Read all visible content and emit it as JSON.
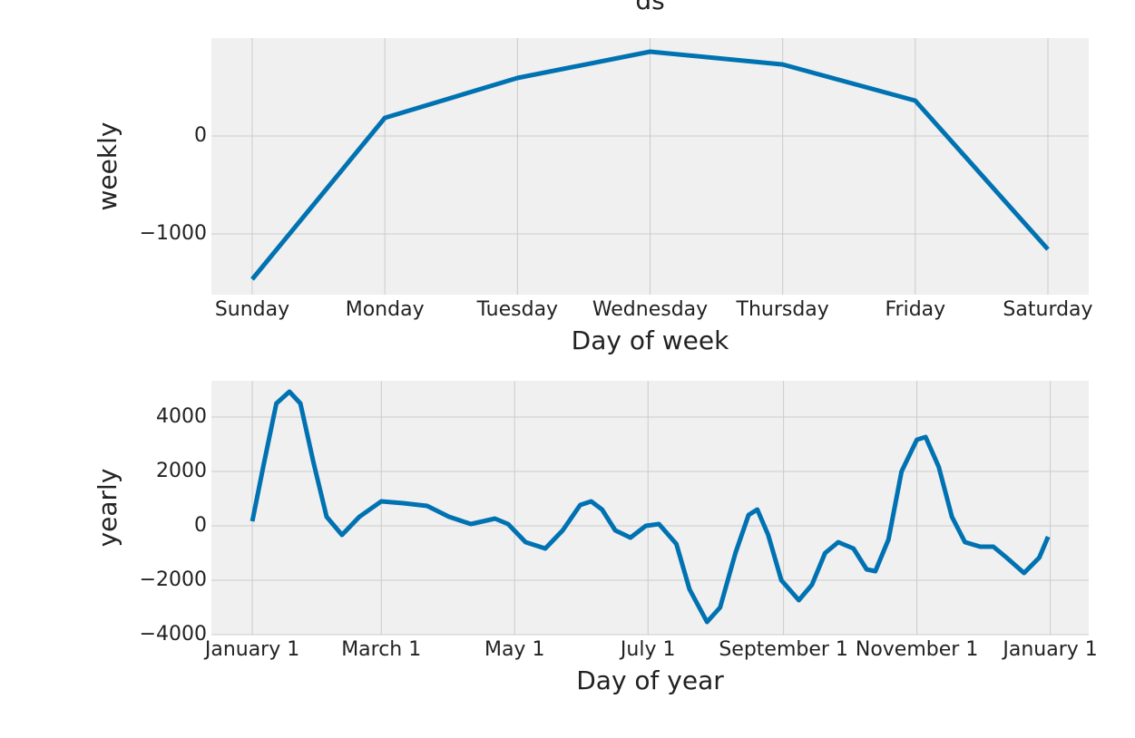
{
  "chart_data": [
    {
      "type": "line",
      "title": "ds",
      "xlabel": "Day of week",
      "ylabel": "weekly",
      "categories": [
        "Sunday",
        "Monday",
        "Tuesday",
        "Wednesday",
        "Thursday",
        "Friday",
        "Saturday"
      ],
      "values": [
        -1463,
        185,
        593,
        861,
        731,
        361,
        -1157
      ],
      "color": "#0072b2",
      "ylim": [
        -1620,
        1000
      ],
      "yticks": [
        {
          "value": -1000,
          "label": "−1000"
        },
        0
      ],
      "grid": true
    },
    {
      "type": "line",
      "xlabel": "Day of year",
      "ylabel": "yearly",
      "x": [
        0,
        5,
        11,
        17,
        22,
        28,
        34,
        41,
        49,
        59,
        69,
        80,
        90,
        100,
        111,
        117,
        125,
        134,
        142,
        150,
        155,
        160,
        166,
        173,
        180,
        186,
        194,
        200,
        208,
        214,
        221,
        227,
        231,
        236,
        242,
        250,
        256,
        262,
        268,
        275,
        281,
        285,
        291,
        297,
        304,
        308,
        314,
        320,
        326,
        333,
        339,
        345,
        353,
        360,
        364
      ],
      "values": [
        167,
        2167,
        4500,
        4933,
        4500,
        2333,
        333,
        -333,
        333,
        900,
        833,
        733,
        333,
        67,
        267,
        67,
        -600,
        -833,
        -167,
        767,
        900,
        600,
        -167,
        -433,
        0,
        67,
        -667,
        -2333,
        -3533,
        -3000,
        -1000,
        400,
        600,
        -333,
        -2000,
        -2733,
        -2167,
        -1000,
        -600,
        -833,
        -1600,
        -1667,
        -500,
        2000,
        3167,
        3267,
        2167,
        333,
        -600,
        -767,
        -767,
        -1167,
        -1733,
        -1167,
        -400
      ],
      "color": "#0072b2",
      "xlim": [
        -18.7,
        382.6
      ],
      "ylim": [
        -4000,
        5333
      ],
      "xticks": [
        {
          "value": 0,
          "label": "January 1"
        },
        {
          "value": 59,
          "label": "March 1"
        },
        {
          "value": 120,
          "label": "May 1"
        },
        {
          "value": 181,
          "label": "July 1"
        },
        {
          "value": 243,
          "label": "September 1"
        },
        {
          "value": 304,
          "label": "November 1"
        },
        {
          "value": 365,
          "label": "January 1"
        }
      ],
      "yticks": [
        {
          "value": -4000,
          "label": "−4000"
        },
        {
          "value": -2000,
          "label": "−2000"
        },
        0,
        2000,
        4000
      ],
      "grid": true
    }
  ]
}
